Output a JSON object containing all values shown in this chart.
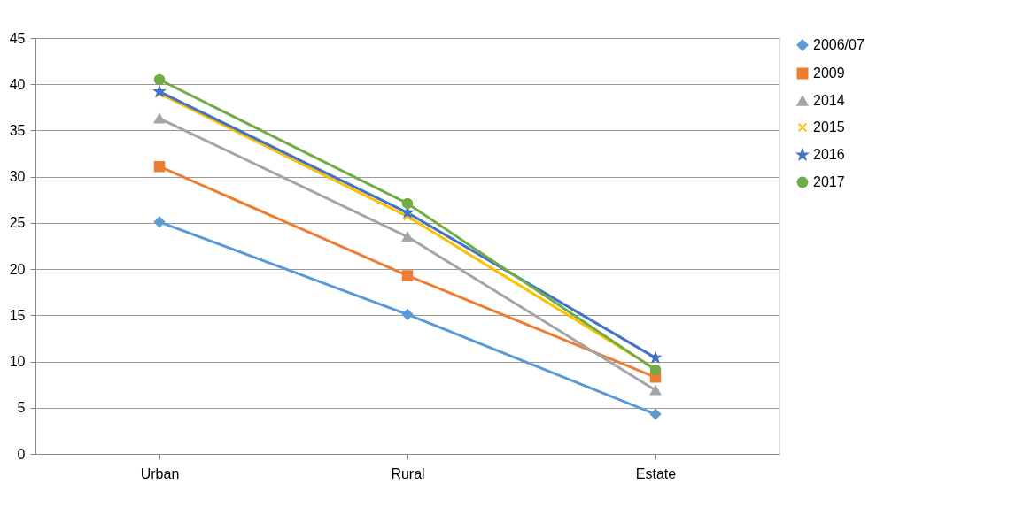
{
  "chart_data": {
    "type": "line",
    "categories": [
      "Urban",
      "Rural",
      "Estate"
    ],
    "series": [
      {
        "name": "2006/07",
        "color": "#5b9bd5",
        "marker": "diamond",
        "values": [
          25.1,
          15.1,
          4.3
        ]
      },
      {
        "name": "2009",
        "color": "#ed7d31",
        "marker": "square",
        "values": [
          31.1,
          19.3,
          8.3
        ]
      },
      {
        "name": "2014",
        "color": "#a5a5a5",
        "marker": "triangle",
        "values": [
          36.3,
          23.5,
          6.9
        ]
      },
      {
        "name": "2015",
        "color": "#ffc000",
        "marker": "cross",
        "values": [
          39.0,
          25.7,
          9.2
        ]
      },
      {
        "name": "2016",
        "color": "#4472c4",
        "marker": "star",
        "values": [
          39.2,
          26.1,
          10.4
        ]
      },
      {
        "name": "2017",
        "color": "#70ad47",
        "marker": "circle",
        "values": [
          40.5,
          27.1,
          9.1
        ]
      }
    ],
    "ylim": [
      0,
      45
    ],
    "yticks": [
      0,
      5,
      10,
      15,
      20,
      25,
      30,
      35,
      40,
      45
    ],
    "grid": "y",
    "legend": "right",
    "line_style": "solid"
  }
}
